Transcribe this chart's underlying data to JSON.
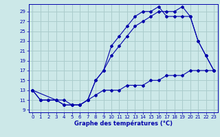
{
  "title": "Graphe des températures (°C)",
  "bg_color": "#cce8e8",
  "grid_color": "#aacccc",
  "line_color": "#0000aa",
  "xlim": [
    -0.5,
    23.5
  ],
  "ylim": [
    8.5,
    30.5
  ],
  "xticks": [
    0,
    1,
    2,
    3,
    4,
    5,
    6,
    7,
    8,
    9,
    10,
    11,
    12,
    13,
    14,
    15,
    16,
    17,
    18,
    19,
    20,
    21,
    22,
    23
  ],
  "yticks": [
    9,
    11,
    13,
    15,
    17,
    19,
    21,
    23,
    25,
    27,
    29
  ],
  "line1_x": [
    0,
    1,
    2,
    3,
    4,
    5,
    6,
    7,
    8,
    9,
    10,
    11,
    12,
    13,
    14,
    15,
    16,
    17,
    18,
    19,
    20,
    21,
    22,
    23
  ],
  "line1_y": [
    13,
    11,
    11,
    11,
    10,
    10,
    10,
    11,
    12,
    13,
    13,
    13,
    14,
    14,
    14,
    15,
    15,
    16,
    16,
    16,
    17,
    17,
    17,
    17
  ],
  "line2_x": [
    0,
    1,
    2,
    3,
    4,
    5,
    6,
    7,
    8,
    9,
    10,
    11,
    12,
    13,
    14,
    15,
    16,
    17,
    18,
    19,
    20,
    21,
    22,
    23
  ],
  "line2_y": [
    13,
    11,
    11,
    11,
    10,
    10,
    10,
    11,
    15,
    17,
    20,
    22,
    24,
    26,
    27,
    28,
    29,
    29,
    29,
    30,
    28,
    23,
    20,
    17
  ],
  "line3_x": [
    0,
    3,
    4,
    5,
    6,
    7,
    8,
    9,
    10,
    11,
    12,
    13,
    14,
    15,
    16,
    17,
    18,
    19,
    20,
    21,
    22,
    23
  ],
  "line3_y": [
    13,
    11,
    11,
    10,
    10,
    11,
    15,
    17,
    22,
    24,
    26,
    28,
    29,
    29,
    30,
    28,
    28,
    28,
    28,
    23,
    20,
    17
  ]
}
